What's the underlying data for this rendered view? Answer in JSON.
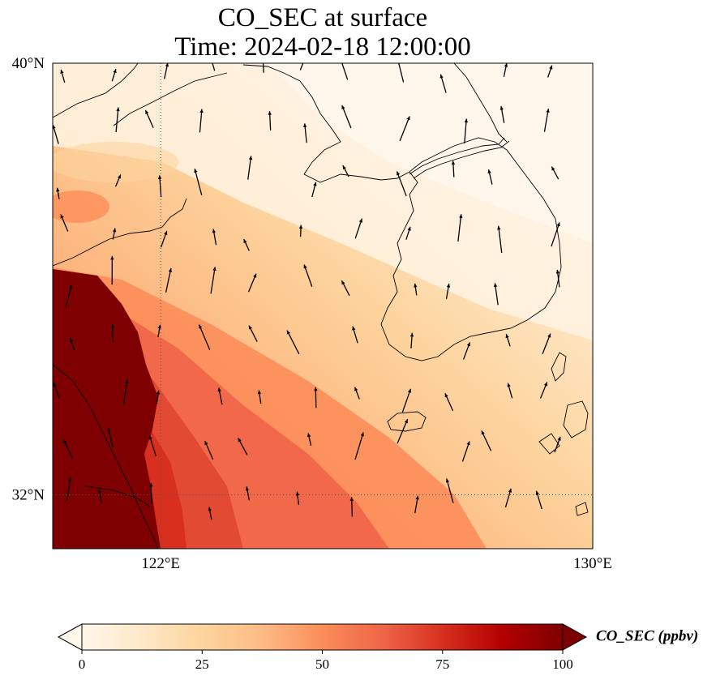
{
  "title": {
    "line1": "CO_SEC at surface",
    "line2": "Time: 2024-02-18 12:00:00"
  },
  "map": {
    "extent": {
      "lon_min": 120.0,
      "lon_max": 130.0,
      "lat_min": 31.0,
      "lat_max": 40.0
    },
    "lat_ticks": [
      {
        "value": 40,
        "label": "40°N"
      },
      {
        "value": 32,
        "label": "32°N"
      }
    ],
    "lon_ticks": [
      {
        "value": 122,
        "label": "122°E"
      },
      {
        "value": 130,
        "label": "130°E"
      }
    ],
    "gridlines": "dotted at 122°E and 32°N",
    "field": "CO_SEC concentration, high (>100 ppbv) over the southwest coast, decreasing toward the northeast",
    "vectors": "wind arrows, predominantly pointing north"
  },
  "colorbar": {
    "label": "CO_SEC (ppbv)",
    "min": 0,
    "max": 100,
    "extend": "both",
    "ticks": [
      {
        "value": 0,
        "label": "0"
      },
      {
        "value": 25,
        "label": "25"
      },
      {
        "value": 50,
        "label": "50"
      },
      {
        "value": 75,
        "label": "75"
      },
      {
        "value": 100,
        "label": "100"
      }
    ],
    "colors": [
      "#fff7ec",
      "#fee8c8",
      "#fdd49e",
      "#fdbb84",
      "#fc8d59",
      "#ef6548",
      "#d7301f",
      "#b30000",
      "#7f0000"
    ]
  }
}
